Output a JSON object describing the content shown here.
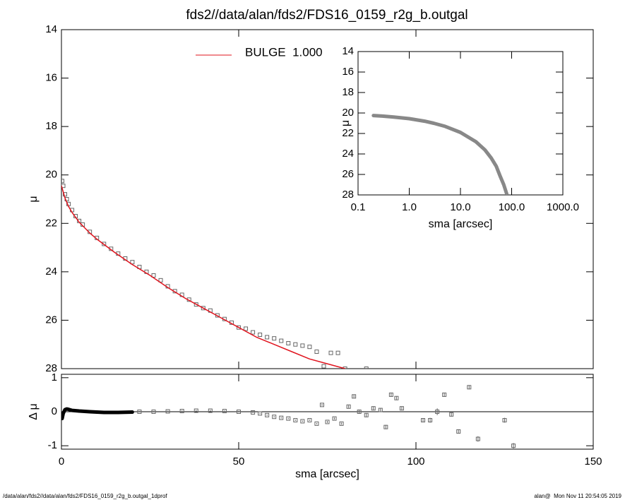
{
  "chart_data": [
    {
      "type": "line",
      "title": "fds2//data/alan/fds2/FDS16_0159_r2g_b.outgal",
      "y_label": "μ",
      "xlim": [
        0,
        150
      ],
      "ylim": [
        28,
        14
      ],
      "xticks": [
        0,
        50,
        100,
        150
      ],
      "yticks": [
        14,
        16,
        18,
        20,
        22,
        24,
        26,
        28
      ],
      "series": [
        {
          "style": "points",
          "color": "#666666",
          "x": [
            0.2,
            0.5,
            1,
            1.5,
            2,
            3,
            4,
            5,
            6,
            8,
            10,
            12,
            14,
            16,
            18,
            20,
            22,
            24,
            26,
            28,
            30,
            32,
            34,
            36,
            38,
            40,
            42,
            44,
            46,
            48,
            50,
            52,
            54,
            56,
            58,
            60,
            62,
            64,
            66,
            68,
            70,
            72,
            74,
            76,
            78,
            80,
            86
          ],
          "values": [
            20.25,
            20.45,
            20.8,
            21.0,
            21.2,
            21.45,
            21.7,
            21.9,
            22.05,
            22.35,
            22.6,
            22.85,
            23.05,
            23.25,
            23.45,
            23.6,
            23.8,
            24.0,
            24.15,
            24.35,
            24.6,
            24.8,
            24.95,
            25.15,
            25.35,
            25.5,
            25.6,
            25.8,
            25.95,
            26.1,
            26.3,
            26.35,
            26.5,
            26.6,
            26.7,
            26.75,
            26.85,
            26.95,
            27.0,
            27.05,
            27.1,
            27.3,
            27.9,
            27.35,
            27.35,
            28.0,
            28.0
          ]
        },
        {
          "name": "BULGE  1.000",
          "style": "line",
          "color": "#e0141e",
          "x": [
            0,
            0.5,
            1,
            2,
            3,
            5,
            8,
            10,
            15,
            20,
            25,
            30,
            35,
            40,
            45,
            50,
            55,
            60,
            65,
            70,
            75,
            80
          ],
          "values": [
            20.45,
            20.7,
            20.95,
            21.3,
            21.55,
            21.95,
            22.4,
            22.65,
            23.2,
            23.7,
            24.15,
            24.65,
            25.1,
            25.5,
            25.9,
            26.3,
            26.7,
            27.0,
            27.3,
            27.6,
            27.8,
            28.0
          ]
        }
      ]
    },
    {
      "type": "line",
      "x_label": "sma [arcsec]",
      "y_label": "μ",
      "xlog": true,
      "xlim": [
        0.1,
        1000
      ],
      "ylim": [
        28,
        14
      ],
      "xticks": [
        {
          "value": 0.1,
          "label": "0.1"
        },
        {
          "value": 1,
          "label": "1.0"
        },
        {
          "value": 10,
          "label": "10.0"
        },
        {
          "value": 100,
          "label": "100.0"
        },
        {
          "value": 1000,
          "label": "1000.0"
        }
      ],
      "yticks": [
        14,
        16,
        18,
        20,
        22,
        24,
        26,
        28
      ],
      "series": [
        {
          "style": "band",
          "color": "#888888",
          "x": [
            0.2,
            0.3,
            0.5,
            1,
            2,
            3,
            5,
            10,
            20,
            30,
            40,
            50,
            60,
            70,
            80
          ],
          "values": [
            20.25,
            20.3,
            20.4,
            20.55,
            20.8,
            21.0,
            21.3,
            21.9,
            22.8,
            23.6,
            24.4,
            25.2,
            26.2,
            27.0,
            27.9
          ]
        }
      ]
    },
    {
      "type": "line",
      "x_label": "sma [arcsec]",
      "y_label": "Δ μ",
      "reference_line": true,
      "xlim": [
        0,
        150
      ],
      "ylim": [
        -1.1,
        1.1
      ],
      "xticks": [
        0,
        50,
        100,
        150
      ],
      "yticks": [
        -1,
        0,
        1
      ],
      "series": [
        {
          "style": "band",
          "color": "#000000",
          "x": [
            0.2,
            0.5,
            1,
            1.5,
            2,
            3,
            5,
            8,
            12,
            16,
            20
          ],
          "values": [
            -0.2,
            -0.05,
            0.06,
            0.08,
            0.07,
            0.04,
            0.02,
            0.0,
            -0.02,
            -0.02,
            -0.01
          ]
        },
        {
          "style": "points",
          "color": "#666666",
          "x": [
            22,
            26,
            30,
            34,
            38,
            42,
            46,
            50,
            54,
            56,
            58,
            60,
            62,
            64,
            66,
            68,
            70,
            72,
            73.5,
            75,
            77,
            79,
            81,
            82.5,
            84,
            86,
            88,
            90,
            91.5,
            93,
            94.5,
            96,
            102,
            104,
            106,
            108,
            110,
            112,
            115,
            117.5,
            125,
            127.5
          ],
          "values": [
            0,
            0,
            0.01,
            0.02,
            0.03,
            0.03,
            0.02,
            0.0,
            -0.02,
            -0.05,
            -0.1,
            -0.15,
            -0.18,
            -0.2,
            -0.25,
            -0.28,
            -0.25,
            -0.35,
            0.2,
            -0.3,
            -0.2,
            -0.35,
            0.15,
            0.45,
            0,
            -0.1,
            0.1,
            0.05,
            -0.45,
            0.5,
            0.4,
            0.1,
            -0.25,
            -0.25,
            0,
            0.5,
            -0.08,
            -0.58,
            0.72,
            -0.8,
            -0.25,
            -1.0
          ],
          "errors": [
            0.02,
            0.02,
            0.02,
            0.02,
            0.02,
            0.02,
            0.02,
            0.02,
            0.02,
            0.02,
            0.02,
            0.02,
            0.02,
            0.02,
            0.02,
            0.02,
            0.02,
            0.02,
            0.03,
            0.03,
            0.03,
            0.03,
            0.04,
            0.04,
            0.05,
            0.05,
            0.05,
            0.05,
            0.06,
            0.05,
            0.05,
            0.05,
            0.06,
            0.07,
            0.1,
            0.06,
            0.06,
            0.05,
            0.06,
            0.08,
            0.07,
            0.08
          ]
        }
      ]
    }
  ],
  "footer": {
    "left": "/data/alan/fds2//data/alan/fds2/FDS16_0159_r2g_b.outgal_1dprof",
    "right": "alan@  Mon Nov 11 20:54:05 2019"
  }
}
